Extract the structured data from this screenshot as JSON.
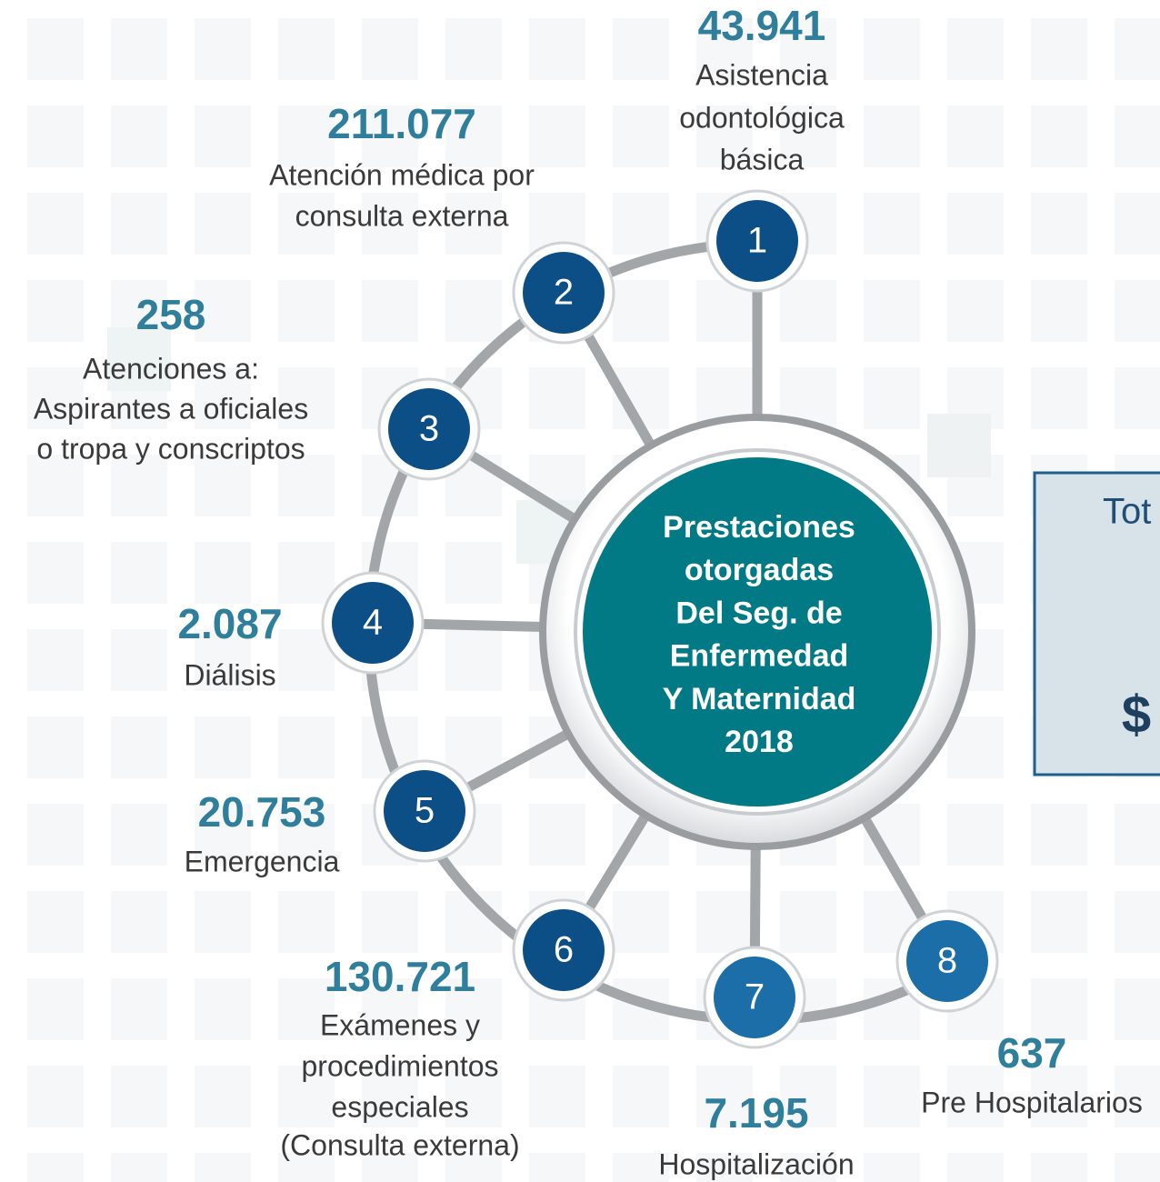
{
  "center": {
    "lines": [
      "Prestaciones",
      "otorgadas",
      "Del Seg. de",
      "Enfermedad",
      "Y Maternidad",
      "2018"
    ]
  },
  "nodes": [
    {
      "number": "1",
      "value": "43.941",
      "label": [
        "Asistencia",
        "odontológica",
        "básica"
      ]
    },
    {
      "number": "2",
      "value": "211.077",
      "label": [
        "Atención médica por",
        "consulta externa"
      ]
    },
    {
      "number": "3",
      "value": "258",
      "label": [
        "Atenciones a:",
        "Aspirantes a oficiales",
        "o tropa y conscriptos"
      ]
    },
    {
      "number": "4",
      "value": "2.087",
      "label": [
        "Diálisis"
      ]
    },
    {
      "number": "5",
      "value": "20.753",
      "label": [
        "Emergencia"
      ]
    },
    {
      "number": "6",
      "value": "130.721",
      "label": [
        "Exámenes y",
        "procedimientos",
        "especiales",
        "(Consulta externa)"
      ]
    },
    {
      "number": "7",
      "value": "7.195",
      "label": [
        "Hospitalización"
      ]
    },
    {
      "number": "8",
      "value": "637",
      "label": [
        "Pre Hospitalarios"
      ]
    }
  ],
  "side_panel": {
    "title": "Tot",
    "amount": "$"
  }
}
